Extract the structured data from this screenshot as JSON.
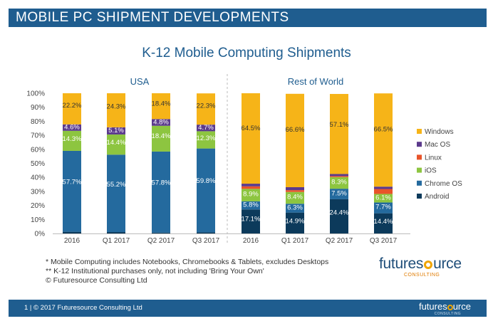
{
  "header": {
    "title": "MOBILE PC SHIPMENT DEVELOPMENTS"
  },
  "chart_data": {
    "type": "bar",
    "stacked": true,
    "title": "K-12 Mobile Computing Shipments",
    "ylim": [
      0,
      100
    ],
    "yticks": [
      "0%",
      "10%",
      "20%",
      "30%",
      "40%",
      "50%",
      "60%",
      "70%",
      "80%",
      "90%",
      "100%"
    ],
    "panels": [
      {
        "name": "USA",
        "categories": [
          "2016",
          "Q1 2017",
          "Q2 2017",
          "Q3 2017"
        ],
        "series": [
          {
            "name": "Android",
            "values": [
              1.2,
              1.0,
              0.6,
              0.8
            ],
            "labels": [
              "",
              "",
              "",
              ""
            ]
          },
          {
            "name": "Chrome OS",
            "values": [
              57.7,
              55.2,
              57.8,
              59.8
            ],
            "labels": [
              "57.7%",
              "55.2%",
              "57.8%",
              "59.8%"
            ]
          },
          {
            "name": "iOS",
            "values": [
              14.3,
              14.4,
              18.4,
              12.3
            ],
            "labels": [
              "14.3%",
              "14.4%",
              "18.4%",
              "12.3%"
            ]
          },
          {
            "name": "Linux",
            "values": [
              0,
              0,
              0,
              0
            ],
            "labels": [
              "",
              "",
              "",
              ""
            ]
          },
          {
            "name": "Mac OS",
            "values": [
              4.6,
              5.1,
              4.8,
              4.7
            ],
            "labels": [
              "4.6%",
              "5.1%",
              "4.8%",
              "4.7%"
            ]
          },
          {
            "name": "Windows",
            "values": [
              22.2,
              24.3,
              18.4,
              22.3
            ],
            "labels": [
              "22.2%",
              "24.3%",
              "18.4%",
              "22.3%"
            ]
          }
        ]
      },
      {
        "name": "Rest of World",
        "categories": [
          "2016",
          "Q1 2017",
          "Q2 2017",
          "Q3 2017"
        ],
        "series": [
          {
            "name": "Android",
            "values": [
              17.1,
              14.9,
              24.4,
              14.4
            ],
            "labels": [
              "17.1%",
              "14.9%",
              "24.4%",
              "14.4%"
            ]
          },
          {
            "name": "Chrome OS",
            "values": [
              5.8,
              6.3,
              7.5,
              7.7
            ],
            "labels": [
              "5.8%",
              "6.3%",
              "7.5%",
              "7.7%"
            ]
          },
          {
            "name": "iOS",
            "values": [
              8.9,
              8.4,
              8.3,
              6.1
            ],
            "labels": [
              "8.9%",
              "8.4%",
              "8.3%",
              "6.1%"
            ]
          },
          {
            "name": "Linux",
            "values": [
              1.8,
              1.3,
              0.7,
              3.5
            ],
            "labels": [
              "",
              "",
              "",
              ""
            ]
          },
          {
            "name": "Mac OS",
            "values": [
              1.9,
              2.1,
              1.5,
              1.7
            ],
            "labels": [
              "",
              "",
              "",
              ""
            ]
          },
          {
            "name": "Windows",
            "values": [
              64.5,
              66.6,
              57.1,
              66.5
            ],
            "labels": [
              "64.5%",
              "66.6%",
              "57.1%",
              "66.5%"
            ]
          }
        ]
      }
    ],
    "legend": [
      {
        "name": "Windows",
        "color": "#f6b418"
      },
      {
        "name": "Mac OS",
        "color": "#5b3a8c"
      },
      {
        "name": "Linux",
        "color": "#e8542a"
      },
      {
        "name": "iOS",
        "color": "#8dc540"
      },
      {
        "name": "Chrome OS",
        "color": "#246a9e"
      },
      {
        "name": "Android",
        "color": "#0c3a5b"
      }
    ],
    "legend_position": "right"
  },
  "footnotes": [
    "* Mobile Computing includes Notebooks, Chromebooks & Tablets, excludes Desktops",
    "** K-12 Institutional purchases only, not including 'Bring Your Own'",
    "© Futuresource Consulting Ltd"
  ],
  "logo": {
    "pre": "futures",
    "post": "urce",
    "sub": "CONSULTING"
  },
  "footer": {
    "text": "1  |  © 2017 Futuresource Consulting Ltd",
    "logo_pre": "futures",
    "logo_post": "urce",
    "logo_sub": "CONSULTING"
  }
}
